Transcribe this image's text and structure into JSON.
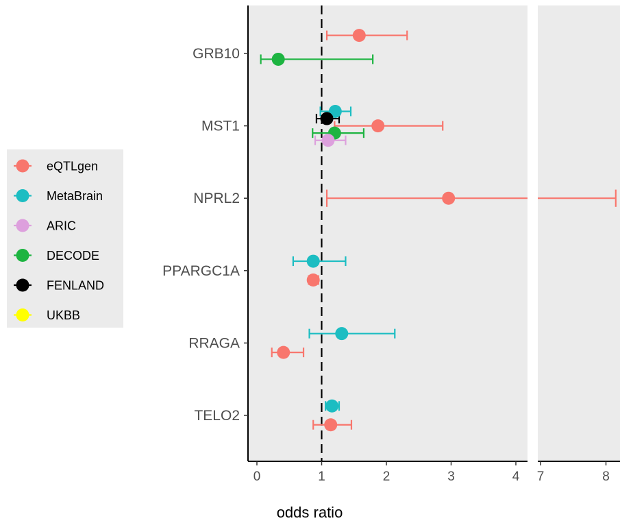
{
  "chart_data": {
    "type": "forest",
    "xlabel": "odds ratio",
    "reference_line": 1,
    "panels": [
      {
        "xlim": [
          -0.1,
          4.2
        ],
        "ticks": [
          0,
          1,
          2,
          3,
          4
        ]
      },
      {
        "xlim": [
          6.85,
          8.2
        ],
        "ticks": [
          7,
          8
        ]
      }
    ],
    "genes": [
      "GRB10",
      "MST1",
      "NPRL2",
      "PPARGC1A",
      "RRAGA",
      "TELO2"
    ],
    "series": [
      {
        "name": "eQTLgen",
        "color": "#F8766D"
      },
      {
        "name": "MetaBrain",
        "color": "#1CBDC2"
      },
      {
        "name": "ARIC",
        "color": "#DDA0DD"
      },
      {
        "name": "DECODE",
        "color": "#1DB441"
      },
      {
        "name": "FENLAND",
        "color": "#000000"
      },
      {
        "name": "UKBB",
        "color": "#FFFF00"
      }
    ],
    "points": [
      {
        "gene": "GRB10",
        "series": "eQTLgen",
        "or": 1.58,
        "lo": 1.08,
        "hi": 2.32,
        "offset": -0.25
      },
      {
        "gene": "GRB10",
        "series": "DECODE",
        "or": 0.33,
        "lo": 0.06,
        "hi": 1.79,
        "offset": 0.08
      },
      {
        "gene": "MST1",
        "series": "MetaBrain",
        "or": 1.21,
        "lo": 0.98,
        "hi": 1.45,
        "offset": -0.2
      },
      {
        "gene": "MST1",
        "series": "FENLAND",
        "or": 1.08,
        "lo": 0.92,
        "hi": 1.27,
        "offset": -0.1
      },
      {
        "gene": "MST1",
        "series": "eQTLgen",
        "or": 1.87,
        "lo": 1.2,
        "hi": 2.87,
        "offset": 0.0
      },
      {
        "gene": "MST1",
        "series": "DECODE",
        "or": 1.2,
        "lo": 0.86,
        "hi": 1.65,
        "offset": 0.1
      },
      {
        "gene": "MST1",
        "series": "ARIC",
        "or": 1.1,
        "lo": 0.9,
        "hi": 1.37,
        "offset": 0.2
      },
      {
        "gene": "NPRL2",
        "series": "eQTLgen",
        "or": 2.96,
        "lo": 1.08,
        "hi": 8.15,
        "offset": 0.0
      },
      {
        "gene": "PPARGC1A",
        "series": "MetaBrain",
        "or": 0.87,
        "lo": 0.56,
        "hi": 1.37,
        "offset": -0.13
      },
      {
        "gene": "PPARGC1A",
        "series": "eQTLgen",
        "or": 0.87,
        "lo": 0.8,
        "hi": 0.95,
        "offset": 0.13
      },
      {
        "gene": "RRAGA",
        "series": "MetaBrain",
        "or": 1.31,
        "lo": 0.81,
        "hi": 2.13,
        "offset": -0.13
      },
      {
        "gene": "RRAGA",
        "series": "eQTLgen",
        "or": 0.41,
        "lo": 0.23,
        "hi": 0.72,
        "offset": 0.13
      },
      {
        "gene": "TELO2",
        "series": "MetaBrain",
        "or": 1.16,
        "lo": 1.06,
        "hi": 1.27,
        "offset": -0.13
      },
      {
        "gene": "TELO2",
        "series": "eQTLgen",
        "or": 1.14,
        "lo": 0.87,
        "hi": 1.46,
        "offset": 0.13
      }
    ]
  }
}
